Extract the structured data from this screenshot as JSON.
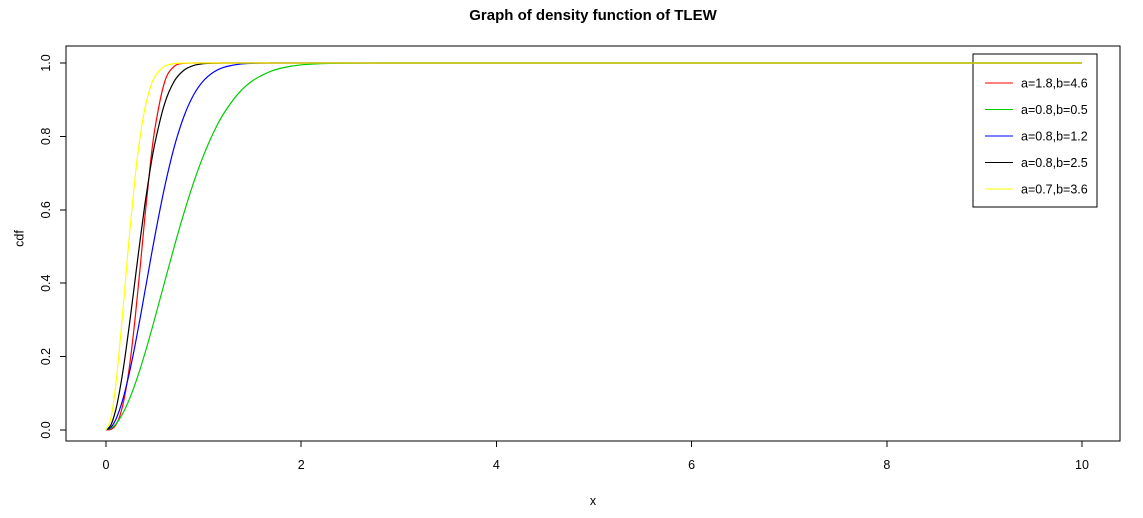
{
  "title": "Graph of density function of TLEW",
  "background": "#FFFFFF",
  "axis_color": "#000000",
  "chart_data": {
    "type": "line",
    "title": "Graph of density function of TLEW",
    "xlabel": "x",
    "ylabel": "cdf",
    "xlim": [
      0,
      10
    ],
    "ylim": [
      0,
      1
    ],
    "x_ticks": [
      "0",
      "2",
      "4",
      "6",
      "8",
      "10"
    ],
    "x_tick_values": [
      0,
      2,
      4,
      6,
      8,
      10
    ],
    "y_ticks": [
      "0.0",
      "0.2",
      "0.4",
      "0.6",
      "0.8",
      "1.0"
    ],
    "y_tick_values": [
      0,
      0.2,
      0.4,
      0.6,
      0.8,
      1.0
    ],
    "grid": false,
    "legend_position": "topright",
    "legend_border": true,
    "x": [
      0,
      0.05,
      0.1,
      0.15,
      0.2,
      0.25,
      0.3,
      0.35,
      0.4,
      0.45,
      0.5,
      0.6,
      0.7,
      0.8,
      0.9,
      1.0,
      1.1,
      1.2,
      1.35,
      1.5,
      1.7,
      1.9,
      2.1,
      2.3,
      2.6,
      3.0,
      4.0,
      6.0,
      8.0,
      10.0
    ],
    "series": [
      {
        "name": "a=1.8,b=4.6",
        "color": "#FF0000",
        "values": [
          0,
          0.0017,
          0.0136,
          0.0452,
          0.1038,
          0.1926,
          0.309,
          0.444,
          0.5837,
          0.7129,
          0.8194,
          0.948,
          0.9909,
          0.9991,
          0.9999,
          1,
          1,
          1,
          1,
          1,
          1,
          1,
          1,
          1,
          1,
          1,
          1,
          1,
          1,
          1
        ]
      },
      {
        "name": "a=0.8,b=0.5",
        "color": "#00CD00",
        "values": [
          0,
          0.0043,
          0.0161,
          0.0349,
          0.0599,
          0.0906,
          0.1265,
          0.1665,
          0.2099,
          0.256,
          0.3041,
          0.4027,
          0.5003,
          0.5925,
          0.676,
          0.7486,
          0.8098,
          0.8596,
          0.915,
          0.9512,
          0.9786,
          0.9915,
          0.9969,
          0.999,
          0.9998,
          1,
          1,
          1,
          1,
          1
        ]
      },
      {
        "name": "a=0.8,b=1.2",
        "color": "#0000FF",
        "values": [
          0,
          0.0071,
          0.0286,
          0.0637,
          0.111,
          0.1686,
          0.2342,
          0.3053,
          0.3793,
          0.454,
          0.5271,
          0.6612,
          0.7718,
          0.8555,
          0.9142,
          0.952,
          0.9748,
          0.9876,
          0.9962,
          0.999,
          0.9999,
          1,
          1,
          1,
          1,
          1,
          1,
          1,
          1,
          1
        ]
      },
      {
        "name": "a=0.8,b=2.5",
        "color": "#000000",
        "values": [
          0,
          0.0137,
          0.0551,
          0.1218,
          0.2082,
          0.308,
          0.4138,
          0.5187,
          0.6173,
          0.7052,
          0.78,
          0.8888,
          0.9506,
          0.9807,
          0.9934,
          0.998,
          0.9995,
          0.9999,
          1,
          1,
          1,
          1,
          1,
          1,
          1,
          1,
          1,
          1,
          1,
          1
        ]
      },
      {
        "name": "a=0.7,b=3.6",
        "color": "#FFFF00",
        "values": [
          0,
          0.0323,
          0.123,
          0.2558,
          0.4085,
          0.5598,
          0.6932,
          0.7997,
          0.8776,
          0.9299,
          0.9625,
          0.9911,
          0.9984,
          0.9998,
          1,
          1,
          1,
          1,
          1,
          1,
          1,
          1,
          1,
          1,
          1,
          1,
          1,
          1,
          1,
          1
        ]
      }
    ]
  }
}
